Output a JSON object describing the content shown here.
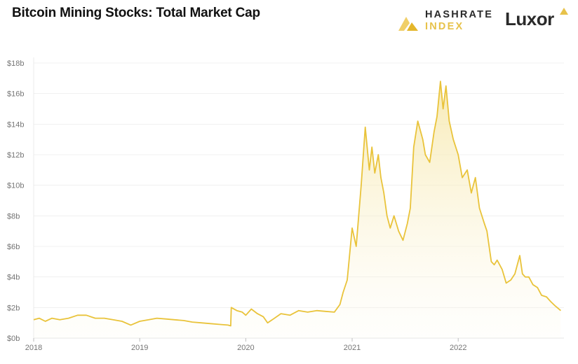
{
  "header": {
    "title": "Bitcoin Mining Stocks: Total Market Cap",
    "brand1_line1": "HASHRATE",
    "brand1_line2": "INDEX",
    "brand2": "Luxor"
  },
  "colors": {
    "line": "#e9c33a",
    "fill_top": "#f6e7a8",
    "grid": "#e6e6e6",
    "brand_gold": "#e7c24a",
    "brand_dark": "#2a2a2a"
  },
  "chart_data": {
    "type": "area",
    "title": "Bitcoin Mining Stocks: Total Market Cap",
    "xlabel": "",
    "ylabel": "",
    "x_ticks": [
      "2018",
      "2019",
      "2020",
      "2021",
      "2022"
    ],
    "y_ticks": [
      "$0b",
      "$2b",
      "$4b",
      "$6b",
      "$8b",
      "$10b",
      "$12b",
      "$14b",
      "$16b",
      "$18b"
    ],
    "ylim": [
      0,
      18
    ],
    "xlim": [
      "2018-01-01",
      "2022-12-31"
    ],
    "grid": "horizontal",
    "legend": "none",
    "series": [
      {
        "x": [
          "2018-01-01",
          "2018-01-20",
          "2018-02-10",
          "2018-03-05",
          "2018-04-01",
          "2018-05-01",
          "2018-06-01",
          "2018-07-01",
          "2018-08-01",
          "2018-09-01",
          "2018-10-01",
          "2018-11-01",
          "2018-12-01",
          "2019-01-01",
          "2019-02-01",
          "2019-03-01",
          "2019-04-01",
          "2019-05-01",
          "2019-06-01",
          "2019-07-01",
          "2019-08-01",
          "2019-09-01",
          "2019-10-01",
          "2019-11-01",
          "2019-11-10",
          "2019-11-12",
          "2019-12-01",
          "2019-12-20",
          "2020-01-01",
          "2020-01-20",
          "2020-02-10",
          "2020-03-01",
          "2020-03-16",
          "2020-04-01",
          "2020-05-01",
          "2020-06-01",
          "2020-07-01",
          "2020-08-01",
          "2020-09-01",
          "2020-10-01",
          "2020-11-01",
          "2020-11-20",
          "2020-12-01",
          "2020-12-15",
          "2021-01-01",
          "2021-01-15",
          "2021-02-01",
          "2021-02-15",
          "2021-03-01",
          "2021-03-10",
          "2021-03-20",
          "2021-04-01",
          "2021-04-10",
          "2021-04-20",
          "2021-05-01",
          "2021-05-12",
          "2021-05-25",
          "2021-06-10",
          "2021-06-25",
          "2021-07-10",
          "2021-07-20",
          "2021-08-01",
          "2021-08-15",
          "2021-09-01",
          "2021-09-10",
          "2021-09-25",
          "2021-10-10",
          "2021-10-20",
          "2021-11-01",
          "2021-11-10",
          "2021-11-20",
          "2021-12-01",
          "2021-12-15",
          "2022-01-01",
          "2022-01-15",
          "2022-02-01",
          "2022-02-15",
          "2022-03-01",
          "2022-03-15",
          "2022-04-01",
          "2022-04-10",
          "2022-04-25",
          "2022-05-05",
          "2022-05-15",
          "2022-06-01",
          "2022-06-15",
          "2022-07-01",
          "2022-07-15",
          "2022-08-01",
          "2022-08-10",
          "2022-08-20",
          "2022-09-01",
          "2022-09-15",
          "2022-10-01",
          "2022-10-15",
          "2022-11-01",
          "2022-11-15",
          "2022-12-01",
          "2022-12-20"
        ],
        "values": [
          1.2,
          1.3,
          1.1,
          1.3,
          1.2,
          1.3,
          1.5,
          1.5,
          1.3,
          1.3,
          1.2,
          1.1,
          0.85,
          1.1,
          1.2,
          1.3,
          1.25,
          1.2,
          1.15,
          1.05,
          1.0,
          0.95,
          0.9,
          0.85,
          0.8,
          2.0,
          1.8,
          1.7,
          1.5,
          1.9,
          1.6,
          1.4,
          1.0,
          1.2,
          1.6,
          1.5,
          1.8,
          1.7,
          1.8,
          1.75,
          1.7,
          2.2,
          3.0,
          3.8,
          7.2,
          6.0,
          10.0,
          13.8,
          11.0,
          12.5,
          10.8,
          12.0,
          10.5,
          9.5,
          8.0,
          7.2,
          8.0,
          7.0,
          6.4,
          7.5,
          8.5,
          12.5,
          14.2,
          13.0,
          12.0,
          11.5,
          13.5,
          14.5,
          16.8,
          15.0,
          16.5,
          14.2,
          13.0,
          12.0,
          10.5,
          11.0,
          9.5,
          10.5,
          8.5,
          7.5,
          7.0,
          5.0,
          4.8,
          5.1,
          4.5,
          3.6,
          3.8,
          4.2,
          5.4,
          4.2,
          4.0,
          4.0,
          3.5,
          3.3,
          2.8,
          2.7,
          2.4,
          2.1,
          1.8
        ]
      }
    ]
  }
}
